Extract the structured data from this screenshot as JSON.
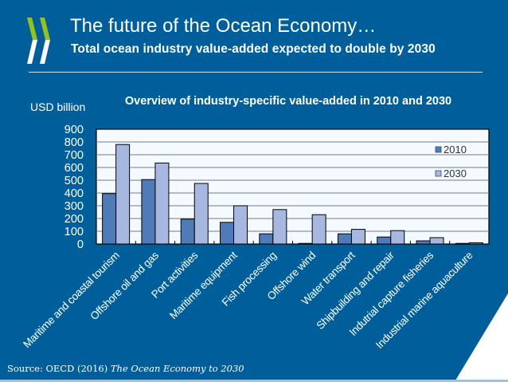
{
  "slide": {
    "title": "The future of the Ocean Economy…",
    "subtitle": "Total ocean industry value-added expected to double by 2030",
    "source_prefix": "Source: OECD (2016) ",
    "source_title": "The Ocean Economy to 2030",
    "logo": "oecd-logo",
    "colors": {
      "background": "#005f9a",
      "plot_background": "#f4faff",
      "series_2010": "#4f7bb9",
      "series_2030": "#a7b8e0",
      "logo_green": "#95c11f"
    }
  },
  "chart_data": {
    "type": "bar",
    "title": "Overview of industry-specific value-added in 2010 and 2030",
    "xlabel": "",
    "ylabel": "USD billion",
    "ylim": [
      0,
      900
    ],
    "yticks": [
      0,
      100,
      200,
      300,
      400,
      500,
      600,
      700,
      800,
      900
    ],
    "grid": true,
    "legend_position": "top-right",
    "categories": [
      "Maritime and coastal tourism",
      "Offshore oil and gas",
      "Port activities",
      "Maritime equipment",
      "Fish processing",
      "Offshore wind",
      "Water transport",
      "Shipbuilding and repair",
      "Indutrial capture fisheries",
      "Industrial marine aquaculture"
    ],
    "series": [
      {
        "name": "2010",
        "values": [
          395,
          505,
          195,
          170,
          80,
          5,
          80,
          55,
          25,
          5
        ]
      },
      {
        "name": "2030",
        "values": [
          780,
          635,
          475,
          300,
          270,
          230,
          115,
          105,
          50,
          10
        ]
      }
    ]
  }
}
